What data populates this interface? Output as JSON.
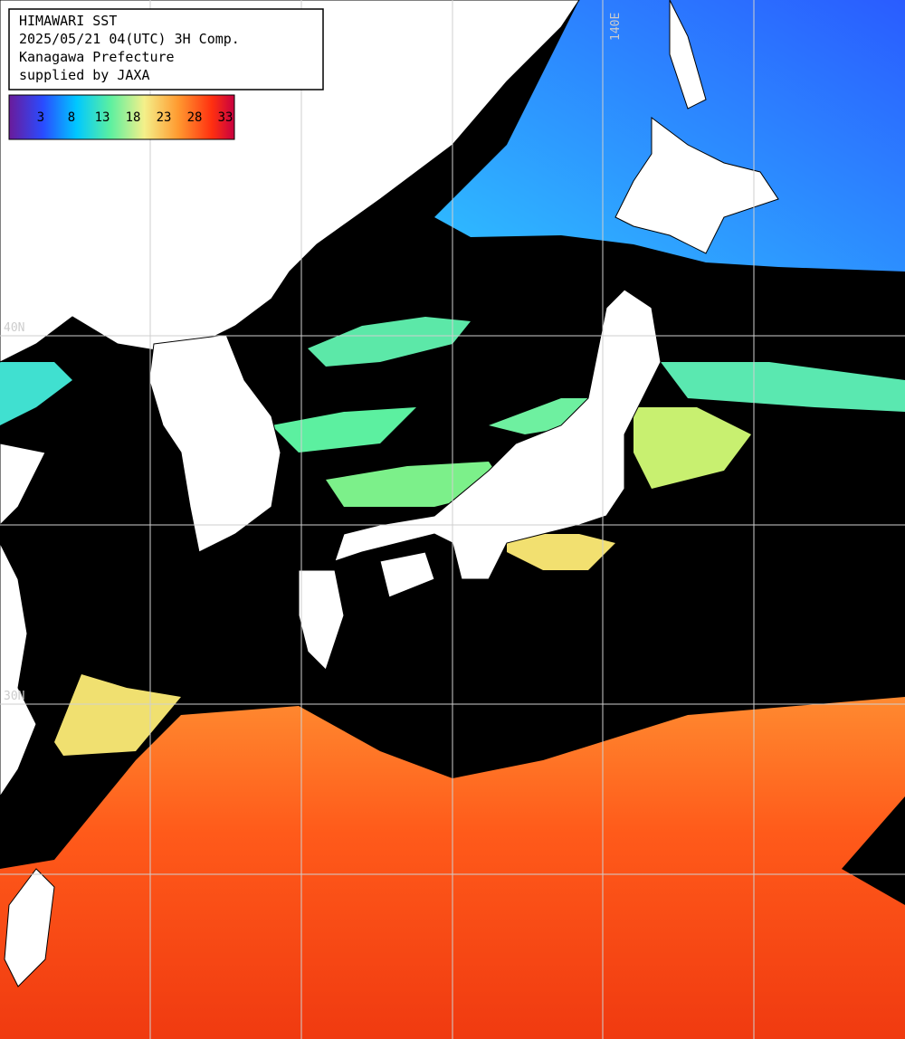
{
  "header": {
    "lines": [
      "HIMAWARI SST",
      "2025/05/21 04(UTC) 3H Comp.",
      "Kanagawa Prefecture",
      "supplied by JAXA"
    ]
  },
  "legend": {
    "labels": [
      "3",
      "8",
      "13",
      "18",
      "23",
      "28",
      "33"
    ]
  },
  "grid_labels": {
    "longitude": "140E",
    "latitudes": [
      "40N",
      "30N"
    ]
  }
}
